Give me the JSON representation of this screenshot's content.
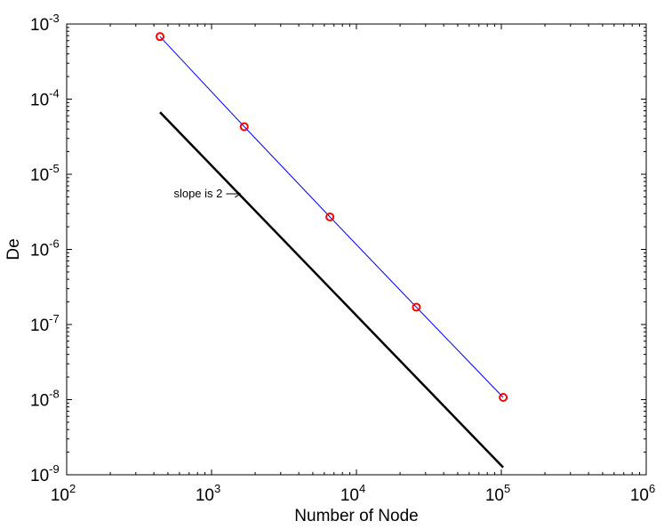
{
  "chart_data": {
    "type": "line",
    "title": "",
    "xlabel": "Number of Node",
    "ylabel": "De",
    "x_scale": "log",
    "y_scale": "log",
    "xlim": [
      100,
      1000000
    ],
    "ylim": [
      1e-09,
      0.001
    ],
    "x_ticks": [
      {
        "value": 100,
        "base": "10",
        "exp": "2"
      },
      {
        "value": 1000,
        "base": "10",
        "exp": "3"
      },
      {
        "value": 10000,
        "base": "10",
        "exp": "4"
      },
      {
        "value": 100000,
        "base": "10",
        "exp": "5"
      },
      {
        "value": 1000000,
        "base": "10",
        "exp": "6"
      }
    ],
    "y_ticks": [
      {
        "value": 1e-09,
        "base": "10",
        "exp": "-9"
      },
      {
        "value": 1e-08,
        "base": "10",
        "exp": "-8"
      },
      {
        "value": 1e-07,
        "base": "10",
        "exp": "-7"
      },
      {
        "value": 1e-06,
        "base": "10",
        "exp": "-6"
      },
      {
        "value": 1e-05,
        "base": "10",
        "exp": "-5"
      },
      {
        "value": 0.0001,
        "base": "10",
        "exp": "-4"
      },
      {
        "value": 0.001,
        "base": "10",
        "exp": "-3"
      }
    ],
    "grid": false,
    "series": [
      {
        "color": "#0000ff",
        "marker": "circle",
        "marker_color": "#ff0000",
        "x": [
          441,
          1681,
          6561,
          25921,
          103041
        ],
        "y": [
          0.00068,
          4.3e-05,
          2.7e-06,
          1.7e-07,
          1.07e-08
        ]
      },
      {
        "color": "#000000",
        "marker": "none",
        "x": [
          441,
          103041
        ],
        "y": [
          6.7e-05,
          1.25e-09
        ]
      }
    ],
    "annotation": {
      "text": "slope is 2",
      "arrow_to_x": 1580,
      "arrow_to_y": 5.5e-06
    }
  }
}
